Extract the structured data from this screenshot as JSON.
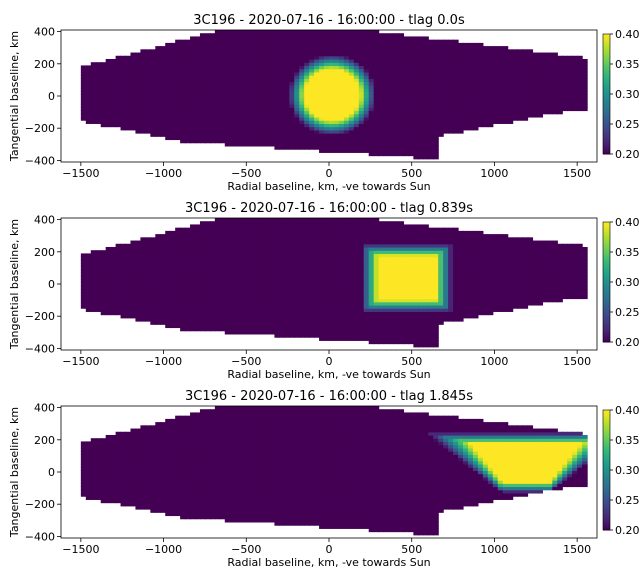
{
  "chart_data": [
    {
      "type": "heatmap",
      "title": "3C196 - 2020-07-16 - 16:00:00 - tlag 0.0s",
      "xlabel": "Radial baseline, km, -ve towards Sun",
      "ylabel": "Tangential baseline, km",
      "xlim": [
        -1620,
        1620
      ],
      "ylim": [
        -410,
        410
      ],
      "xticks": [
        "−1500",
        "−1000",
        "−500",
        "0",
        "500",
        "1000",
        "1500"
      ],
      "xtick_values": [
        -1500,
        -1000,
        -500,
        0,
        500,
        1000,
        1500
      ],
      "yticks": [
        "−400",
        "−200",
        "0",
        "200",
        "400"
      ],
      "ytick_values": [
        -400,
        -200,
        0,
        200,
        400
      ],
      "colorbar": {
        "min": 0.2,
        "max": 0.4,
        "ticks": [
          "0.20",
          "0.25",
          "0.30",
          "0.35",
          "0.40"
        ],
        "tick_values": [
          0.2,
          0.25,
          0.3,
          0.35,
          0.4
        ],
        "colormap": "viridis"
      },
      "background_value": 0.2,
      "feature": {
        "shape": "ellipse",
        "center_x_km": 20,
        "center_y_km": 10,
        "radius_x_km": 210,
        "radius_y_km": 200,
        "core_value": 0.4
      }
    },
    {
      "type": "heatmap",
      "title": "3C196 - 2020-07-16 - 16:00:00 - tlag 0.839s",
      "xlabel": "Radial baseline, km, -ve towards Sun",
      "ylabel": "Tangential baseline, km",
      "xlim": [
        -1620,
        1620
      ],
      "ylim": [
        -410,
        410
      ],
      "xticks": [
        "−1500",
        "−1000",
        "−500",
        "0",
        "500",
        "1000",
        "1500"
      ],
      "xtick_values": [
        -1500,
        -1000,
        -500,
        0,
        500,
        1000,
        1500
      ],
      "yticks": [
        "−400",
        "−200",
        "0",
        "200",
        "400"
      ],
      "ytick_values": [
        -400,
        -200,
        0,
        200,
        400
      ],
      "colorbar": {
        "min": 0.2,
        "max": 0.4,
        "ticks": [
          "0.20",
          "0.25",
          "0.30",
          "0.35",
          "0.40"
        ],
        "tick_values": [
          0.2,
          0.25,
          0.3,
          0.35,
          0.4
        ],
        "colormap": "viridis"
      },
      "background_value": 0.2,
      "feature": {
        "shape": "box",
        "center_x_km": 470,
        "center_y_km": 40,
        "radius_x_km": 220,
        "radius_y_km": 170,
        "core_value": 0.4
      }
    },
    {
      "type": "heatmap",
      "title": "3C196 - 2020-07-16 - 16:00:00 - tlag 1.845s",
      "xlabel": "Radial baseline, km, -ve towards Sun",
      "ylabel": "Tangential baseline, km",
      "xlim": [
        -1620,
        1620
      ],
      "ylim": [
        -410,
        410
      ],
      "xticks": [
        "−1500",
        "−1000",
        "−500",
        "0",
        "500",
        "1000",
        "1500"
      ],
      "xtick_values": [
        -1500,
        -1000,
        -500,
        0,
        500,
        1000,
        1500
      ],
      "yticks": [
        "−400",
        "−200",
        "0",
        "200",
        "400"
      ],
      "ytick_values": [
        -400,
        -200,
        0,
        200,
        400
      ],
      "colorbar": {
        "min": 0.2,
        "max": 0.4,
        "ticks": [
          "0.20",
          "0.25",
          "0.30",
          "0.35",
          "0.40"
        ],
        "tick_values": [
          0.2,
          0.25,
          0.3,
          0.35,
          0.4
        ],
        "colormap": "viridis"
      },
      "background_value": 0.2,
      "feature": {
        "shape": "trapezoid",
        "center_x_km": 1190,
        "center_y_km": 60,
        "radius_x_km": 300,
        "radius_y_km": 150,
        "core_value": 0.4
      }
    }
  ],
  "colors": {
    "background_purple": "#440154",
    "viridis": [
      "#440154",
      "#482878",
      "#3e4989",
      "#31688e",
      "#26828e",
      "#1f9e89",
      "#35b779",
      "#6ece58",
      "#b5de2b",
      "#fde725"
    ]
  }
}
